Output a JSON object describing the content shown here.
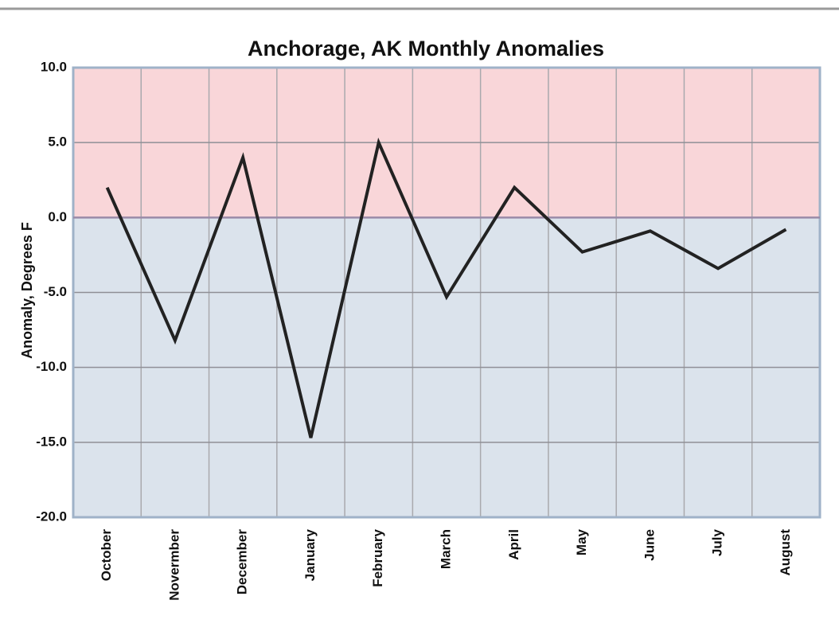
{
  "chart_data": {
    "type": "line",
    "title": "Anchorage, AK Monthly Anomalies",
    "y_label": "Anomaly, Degrees F",
    "categories": [
      "October",
      "Novermber",
      "December",
      "January",
      "February",
      "March",
      "April",
      "May",
      "June",
      "July",
      "August"
    ],
    "series": [
      {
        "name": "Anomaly",
        "color": "#222222",
        "values": [
          2.0,
          -8.2,
          4.0,
          -14.7,
          5.0,
          -5.3,
          2.0,
          -2.3,
          -0.9,
          -3.4,
          -0.8
        ]
      }
    ],
    "ylim": [
      -20,
      10
    ],
    "yticks": [
      {
        "value": 10,
        "label": "10.0"
      },
      {
        "value": 5,
        "label": "5.0"
      },
      {
        "value": 0,
        "label": "0.0"
      },
      {
        "value": -5,
        "label": "-5.0"
      },
      {
        "value": -10,
        "label": "-10.0"
      },
      {
        "value": -15,
        "label": "-15.0"
      },
      {
        "value": -20,
        "label": "-20.0"
      }
    ],
    "grid": true,
    "positive_color": "#f9d6d9",
    "negative_color": "#dbe3ec"
  }
}
